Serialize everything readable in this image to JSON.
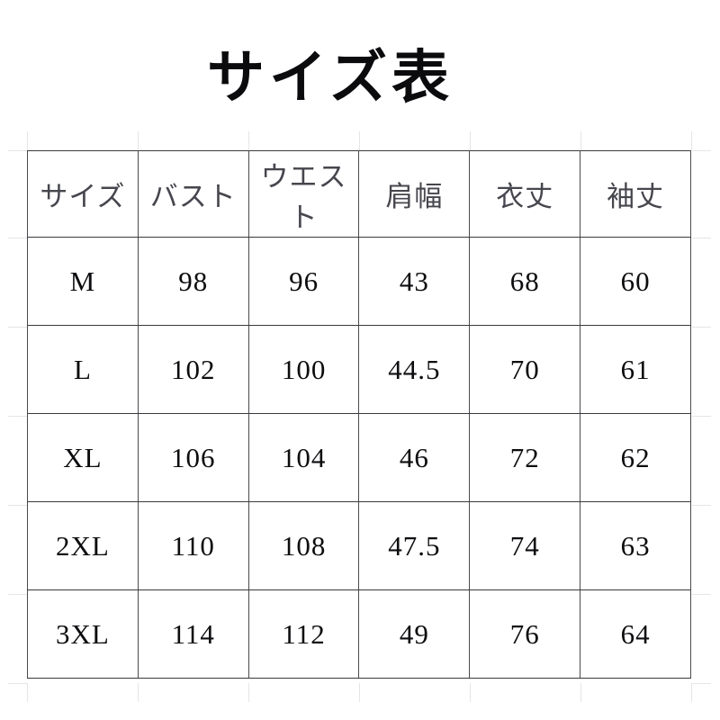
{
  "title": "サイズ表",
  "table": {
    "headers": [
      "サイズ",
      "バスト",
      "ウエスト",
      "肩幅",
      "衣丈",
      "袖丈"
    ],
    "rows": [
      [
        "M",
        "98",
        "96",
        "43",
        "68",
        "60"
      ],
      [
        "L",
        "102",
        "100",
        "44.5",
        "70",
        "61"
      ],
      [
        "XL",
        "106",
        "104",
        "46",
        "72",
        "62"
      ],
      [
        "2XL",
        "110",
        "108",
        "47.5",
        "74",
        "63"
      ],
      [
        "3XL",
        "114",
        "112",
        "49",
        "76",
        "64"
      ]
    ]
  },
  "chart_data": {
    "type": "table",
    "title": "サイズ表",
    "columns": [
      "サイズ",
      "バスト",
      "ウエスト",
      "肩幅",
      "衣丈",
      "袖丈"
    ],
    "rows": [
      [
        "M",
        98,
        96,
        43,
        68,
        60
      ],
      [
        "L",
        102,
        100,
        44.5,
        70,
        61
      ],
      [
        "XL",
        106,
        104,
        46,
        72,
        62
      ],
      [
        "2XL",
        110,
        108,
        47.5,
        74,
        63
      ],
      [
        "3XL",
        114,
        112,
        49,
        76,
        64
      ]
    ],
    "sizes": [
      "M",
      "L",
      "XL",
      "2XL",
      "3XL"
    ],
    "series": [
      {
        "name": "バスト",
        "values": [
          98,
          102,
          106,
          110,
          114
        ]
      },
      {
        "name": "ウエスト",
        "values": [
          96,
          100,
          104,
          108,
          112
        ]
      },
      {
        "name": "肩幅",
        "values": [
          43,
          44.5,
          46,
          47.5,
          49
        ]
      },
      {
        "name": "衣丈",
        "values": [
          68,
          70,
          72,
          74,
          76
        ]
      },
      {
        "name": "袖丈",
        "values": [
          60,
          61,
          62,
          63,
          64
        ]
      }
    ]
  },
  "colors": {
    "background": "#ffffff",
    "title_text": "#0b0b0e",
    "header_text": "#46464e",
    "body_text": "#0d0d10",
    "border_horizontal": "#3a3a3e",
    "border_vertical": "#4b4b4f",
    "gridline_stub": "#e5e5e8"
  }
}
